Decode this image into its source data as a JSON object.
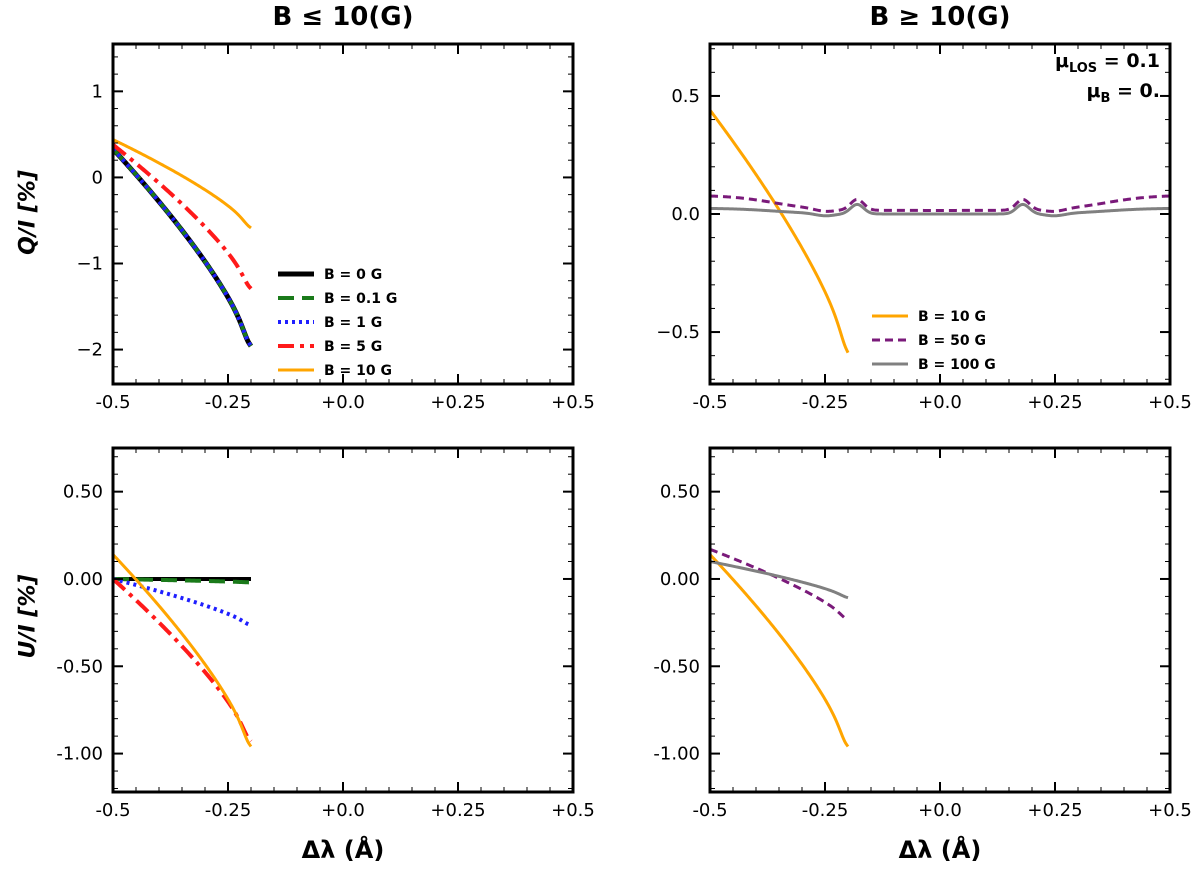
{
  "figure": {
    "col_titles": [
      "B ≤ 10(G)",
      "B ≥ 10(G)"
    ],
    "ylabel_top": "Q/I [%]",
    "ylabel_bottom": "U/I [%]",
    "xlabel": "Δλ (Å)",
    "annotation": {
      "mu_los_sym": "μ",
      "mu_los_sub": "LOS",
      "mu_los_val": "= 0.1",
      "mu_b_sym": "μ",
      "mu_b_sub": "B",
      "mu_b_val": "= 0."
    }
  },
  "chart_data": [
    {
      "id": "q-left",
      "type": "line",
      "panel": "top-left",
      "xlim": [
        -0.5,
        0.5
      ],
      "ylim": [
        -2.4,
        1.55
      ],
      "xticks": [
        -0.5,
        -0.25,
        0,
        0.25,
        0.5
      ],
      "xtick_labels": [
        "-0.5",
        "-0.25",
        "+0.0",
        "+0.25",
        "+0.5"
      ],
      "yticks": [
        -2,
        -1,
        0,
        1
      ],
      "ytick_labels": [
        "−2",
        "−1",
        "0",
        "1"
      ],
      "legend": "lower-center",
      "series": [
        {
          "name": "B = 0 G",
          "color": "#000000",
          "dash": "",
          "width": 5,
          "shape": [
            -2.0,
            1.0,
            0.33
          ]
        },
        {
          "name": "B = 0.1 G",
          "color": "#1a7a1a",
          "dash": "16,8",
          "width": 4,
          "shape": [
            -2.0,
            1.15,
            0.33
          ]
        },
        {
          "name": "B = 1 G",
          "color": "#1f1fff",
          "dash": "3,4",
          "width": 4,
          "shape": [
            -2.0,
            1.12,
            0.33
          ]
        },
        {
          "name": "B = 5 G",
          "color": "#ff1a1a",
          "dash": "16,6,4,6",
          "width": 4,
          "shape": [
            -1.32,
            0.72,
            0.38
          ]
        },
        {
          "name": "B = 10 G",
          "color": "#ffa500",
          "dash": "",
          "width": 3,
          "shape": [
            -0.6,
            0.33,
            0.44
          ]
        }
      ]
    },
    {
      "id": "q-right",
      "type": "line",
      "panel": "top-right",
      "xlim": [
        -0.5,
        0.5
      ],
      "ylim": [
        -0.72,
        0.72
      ],
      "xticks": [
        -0.5,
        -0.25,
        0,
        0.25,
        0.5
      ],
      "xtick_labels": [
        "-0.5",
        "-0.25",
        "+0.0",
        "+0.25",
        "+0.5"
      ],
      "yticks": [
        -0.5,
        0,
        0.5
      ],
      "ytick_labels": [
        "−0.5",
        "0.0",
        "0.5"
      ],
      "legend": "lower-center",
      "series": [
        {
          "name": "B = 10 G",
          "color": "#ffa500",
          "dash": "",
          "width": 3,
          "shape": [
            -0.6,
            0.33,
            0.44
          ]
        },
        {
          "name": "B = 50 G",
          "color": "#7a1a7a",
          "dash": "8,5",
          "width": 3,
          "shape": [
            0.015,
            0.015,
            0.08,
            0.045
          ]
        },
        {
          "name": "B = 100 G",
          "color": "#808080",
          "dash": "",
          "width": 3,
          "shape": [
            0.0,
            0.0,
            0.025,
            0.04
          ]
        }
      ]
    },
    {
      "id": "u-left",
      "type": "line",
      "panel": "bottom-left",
      "xlim": [
        -0.5,
        0.5
      ],
      "ylim": [
        -1.22,
        0.75
      ],
      "xticks": [
        -0.5,
        -0.25,
        0,
        0.25,
        0.5
      ],
      "xtick_labels": [
        "-0.5",
        "-0.25",
        "+0.0",
        "+0.25",
        "+0.5"
      ],
      "yticks": [
        -1.0,
        -0.5,
        0,
        0.5
      ],
      "ytick_labels": [
        "-1.00",
        "-0.50",
        "0.00",
        "0.50"
      ],
      "series": [
        {
          "name": "B = 0 G",
          "color": "#000000",
          "dash": "",
          "width": 4,
          "shape": [
            0,
            0,
            0
          ]
        },
        {
          "name": "B = 0.1 G",
          "color": "#1a7a1a",
          "dash": "16,8",
          "width": 4,
          "shape": [
            -0.02,
            0.02,
            0
          ]
        },
        {
          "name": "B = 1 G",
          "color": "#1f1fff",
          "dash": "3,4",
          "width": 4,
          "shape": [
            -0.27,
            0.17,
            0
          ]
        },
        {
          "name": "B = 5 G",
          "color": "#ff1a1a",
          "dash": "16,6,4,6",
          "width": 4,
          "shape": [
            -0.95,
            0.55,
            0
          ]
        },
        {
          "name": "B = 10 G",
          "color": "#ffa500",
          "dash": "",
          "width": 3,
          "shape": [
            -0.98,
            0.52,
            0.14
          ]
        }
      ]
    },
    {
      "id": "u-right",
      "type": "line",
      "panel": "bottom-right",
      "xlim": [
        -0.5,
        0.5
      ],
      "ylim": [
        -1.22,
        0.75
      ],
      "xticks": [
        -0.5,
        -0.25,
        0,
        0.25,
        0.5
      ],
      "xtick_labels": [
        "-0.5",
        "-0.25",
        "+0.0",
        "+0.25",
        "+0.5"
      ],
      "yticks": [
        -1.0,
        -0.5,
        0,
        0.5
      ],
      "ytick_labels": [
        "-1.00",
        "-0.50",
        "0.00",
        "0.50"
      ],
      "series": [
        {
          "name": "B = 10 G",
          "color": "#ffa500",
          "dash": "",
          "width": 3,
          "shape": [
            -0.98,
            0.52,
            0.14
          ]
        },
        {
          "name": "B = 50 G",
          "color": "#7a1a7a",
          "dash": "8,5",
          "width": 3,
          "shape": [
            -0.24,
            0.14,
            0.17
          ]
        },
        {
          "name": "B = 100 G",
          "color": "#808080",
          "dash": "",
          "width": 3,
          "shape": [
            -0.11,
            0.07,
            0.1
          ]
        }
      ]
    }
  ]
}
